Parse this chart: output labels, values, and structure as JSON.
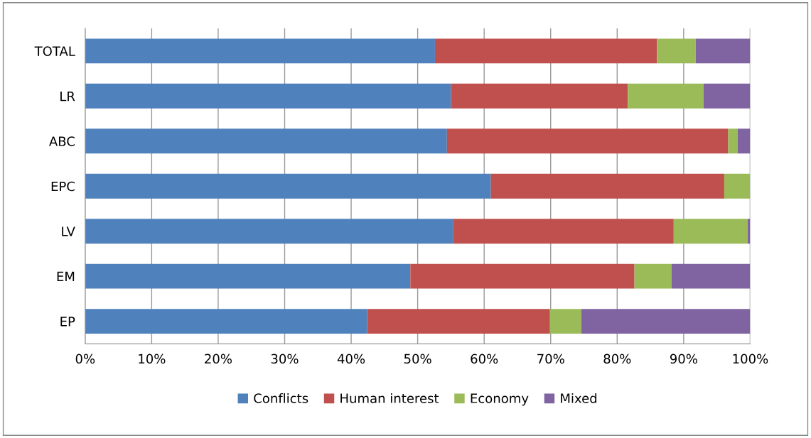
{
  "chart_data": {
    "type": "bar",
    "orientation": "horizontal",
    "stacked": true,
    "categories": [
      "TOTAL",
      "LR",
      "ABC",
      "EPC",
      "LV",
      "EM",
      "EP"
    ],
    "series": [
      {
        "name": "Conflicts",
        "color": "#4f81bd",
        "values": [
          52.6,
          55.0,
          54.4,
          61.0,
          55.3,
          48.9,
          42.4
        ]
      },
      {
        "name": "Human interest",
        "color": "#c0504d",
        "values": [
          33.4,
          26.6,
          42.3,
          35.1,
          33.2,
          33.7,
          27.5
        ]
      },
      {
        "name": "Economy",
        "color": "#9bbb59",
        "values": [
          5.8,
          11.4,
          1.4,
          3.9,
          11.1,
          5.6,
          4.7
        ]
      },
      {
        "name": "Mixed",
        "color": "#8064a2",
        "values": [
          8.2,
          7.0,
          1.9,
          0,
          0.4,
          11.8,
          25.4
        ]
      }
    ],
    "xlim": [
      0,
      100
    ],
    "xticks": [
      {
        "value": 0,
        "label": "0%"
      },
      {
        "value": 10,
        "label": "10%"
      },
      {
        "value": 20,
        "label": "20%"
      },
      {
        "value": 30,
        "label": "30%"
      },
      {
        "value": 40,
        "label": "40%"
      },
      {
        "value": 50,
        "label": "50%"
      },
      {
        "value": 60,
        "label": "60%"
      },
      {
        "value": 70,
        "label": "70%"
      },
      {
        "value": 80,
        "label": "80%"
      },
      {
        "value": 90,
        "label": "90%"
      },
      {
        "value": 100,
        "label": "100%"
      }
    ],
    "grid": "x",
    "legend": "bottom"
  }
}
